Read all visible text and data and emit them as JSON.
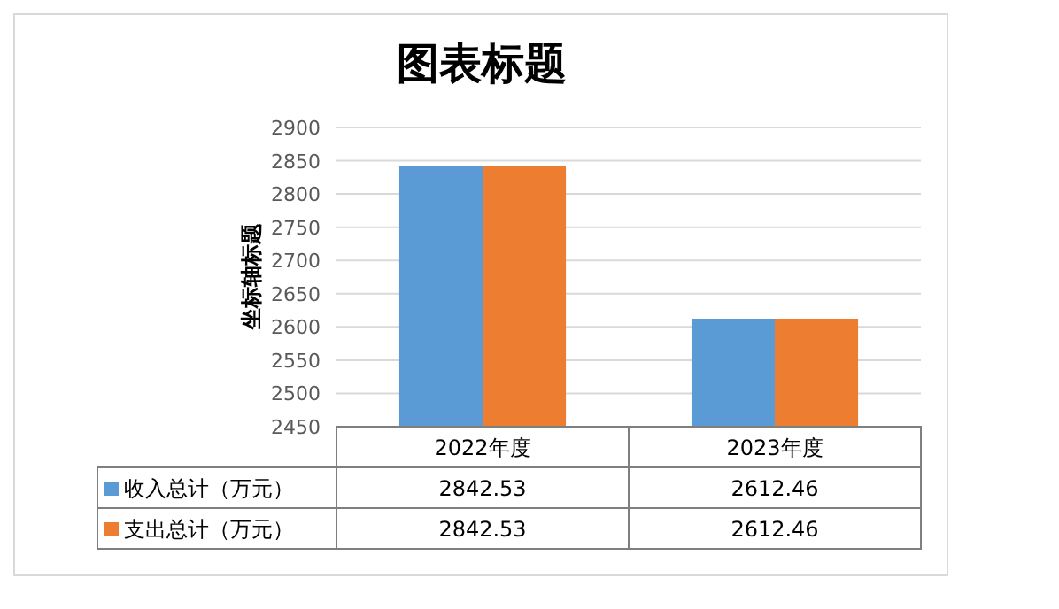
{
  "chart_data": {
    "type": "bar",
    "title": "图表标题",
    "ylabel": "坐标轴标题",
    "categories": [
      "2022年度",
      "2023年度"
    ],
    "series": [
      {
        "name": "收入总计（万元）",
        "color": "#5b9bd5",
        "values": [
          2842.53,
          2612.46
        ]
      },
      {
        "name": "支出总计（万元）",
        "color": "#ed7d31",
        "values": [
          2842.53,
          2612.46
        ]
      }
    ],
    "ylim": [
      2450,
      2900
    ],
    "yticks": [
      2450,
      2500,
      2550,
      2600,
      2650,
      2700,
      2750,
      2800,
      2850,
      2900
    ],
    "grid": "y",
    "legend": "bottom",
    "data_labels": true
  }
}
